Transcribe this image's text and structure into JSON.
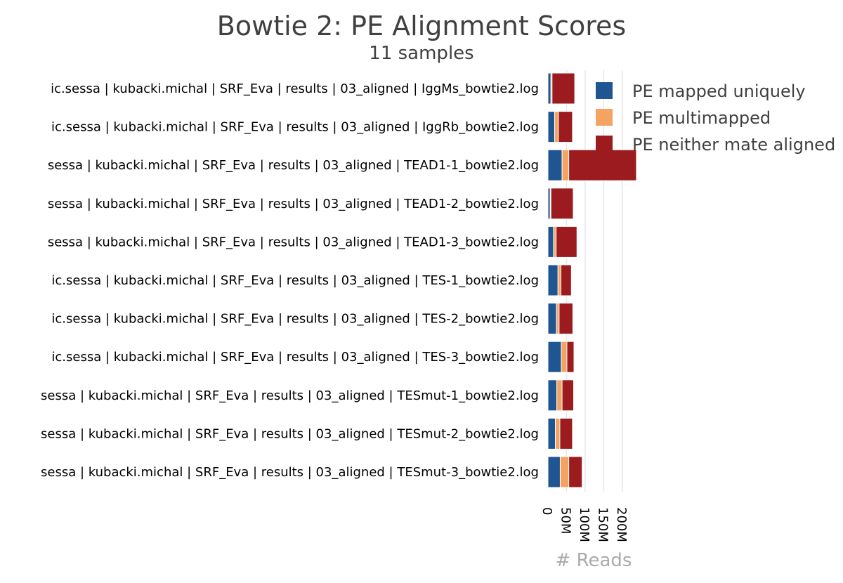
{
  "chart_data": {
    "type": "bar",
    "orientation": "horizontal",
    "stacked": true,
    "title": "Bowtie 2: PE Alignment Scores",
    "subtitle": "11 samples",
    "xlabel": "# Reads",
    "ylabel": "",
    "xlim": [
      0,
      240000000
    ],
    "xticks": [
      0,
      50000000,
      100000000,
      150000000,
      200000000
    ],
    "xtick_labels": [
      "0",
      "50M",
      "100M",
      "150M",
      "200M"
    ],
    "grid": true,
    "legend_position": "top-right",
    "categories": [
      "ic.sessa | kubacki.michal | SRF_Eva | results | 03_aligned | IggMs_bowtie2.log",
      "ic.sessa | kubacki.michal | SRF_Eva | results | 03_aligned | IggRb_bowtie2.log",
      "sessa | kubacki.michal | SRF_Eva | results | 03_aligned | TEAD1-1_bowtie2.log",
      "sessa | kubacki.michal | SRF_Eva | results | 03_aligned | TEAD1-2_bowtie2.log",
      "sessa | kubacki.michal | SRF_Eva | results | 03_aligned | TEAD1-3_bowtie2.log",
      "ic.sessa | kubacki.michal | SRF_Eva | results | 03_aligned | TES-1_bowtie2.log",
      "ic.sessa | kubacki.michal | SRF_Eva | results | 03_aligned | TES-2_bowtie2.log",
      "ic.sessa | kubacki.michal | SRF_Eva | results | 03_aligned | TES-3_bowtie2.log",
      "sessa | kubacki.michal | SRF_Eva | results | 03_aligned | TESmut-1_bowtie2.log",
      "sessa | kubacki.michal | SRF_Eva | results | 03_aligned | TESmut-2_bowtie2.log",
      "sessa | kubacki.michal | SRF_Eva | results | 03_aligned | TESmut-3_bowtie2.log"
    ],
    "series": [
      {
        "name": "PE mapped uniquely",
        "color": "#1f5590",
        "values": [
          8000000,
          18000000,
          38000000,
          6000000,
          15000000,
          27000000,
          23000000,
          36000000,
          24000000,
          20000000,
          33000000
        ]
      },
      {
        "name": "PE multimapped",
        "color": "#f4a460",
        "values": [
          3000000,
          10000000,
          18000000,
          2000000,
          7000000,
          8000000,
          7000000,
          15000000,
          14000000,
          12000000,
          23000000
        ]
      },
      {
        "name": "PE neither mate aligned",
        "color": "#9b1b1e",
        "values": [
          61000000,
          38000000,
          182000000,
          60000000,
          56000000,
          28000000,
          37000000,
          19000000,
          31000000,
          34000000,
          36000000
        ]
      }
    ]
  }
}
